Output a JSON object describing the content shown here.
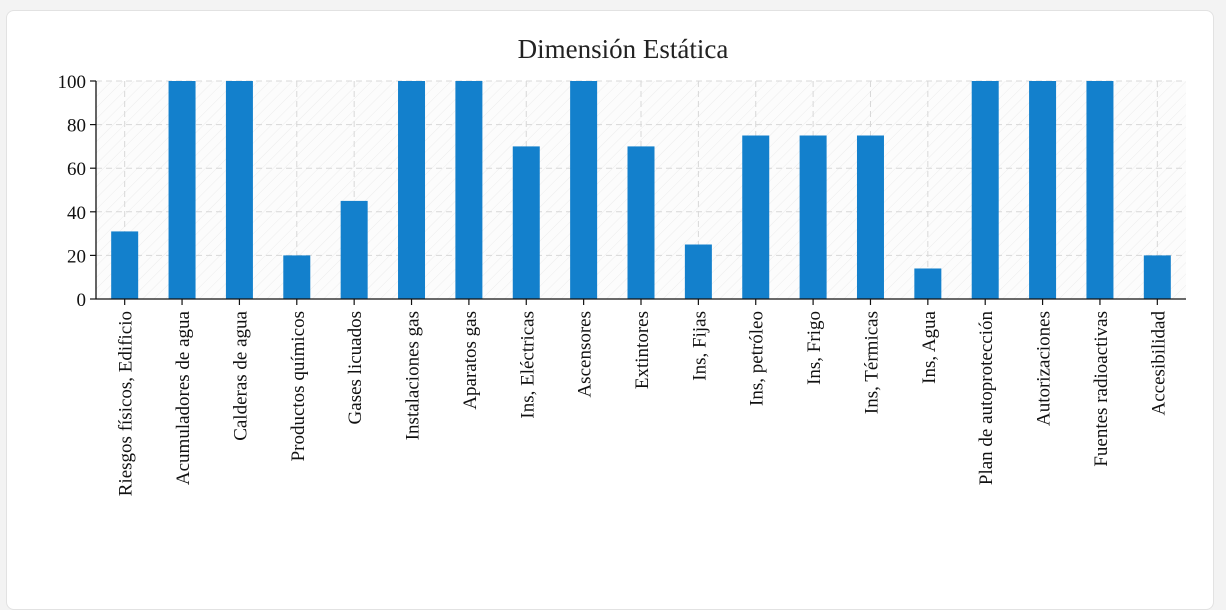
{
  "chart_data": {
    "type": "bar",
    "title": "Dimensión Estática",
    "xlabel": "",
    "ylabel": "",
    "ylim": [
      0,
      100
    ],
    "yticks": [
      0,
      20,
      40,
      60,
      80,
      100
    ],
    "grid": true,
    "legend": "none",
    "bar_color": "#1380cc",
    "categories": [
      "Riesgos físicos, Edificio",
      "Acumuladores de agua",
      "Calderas de agua",
      "Productos químicos",
      "Gases licuados",
      "Instalaciones gas",
      "Aparatos gas",
      "Ins, Eléctricas",
      "Ascensores",
      "Extintores",
      "Ins, Fijas",
      "Ins, petróleo",
      "Ins, Frigo",
      "Ins, Térmicas",
      "Ins, Agua",
      "Plan de autoprotección",
      "Autorizaciones",
      "Fuentes radioactivas",
      "Accesibilidad"
    ],
    "values": [
      31,
      100,
      100,
      20,
      45,
      100,
      100,
      70,
      100,
      70,
      25,
      75,
      75,
      75,
      14,
      100,
      100,
      100,
      20
    ]
  }
}
